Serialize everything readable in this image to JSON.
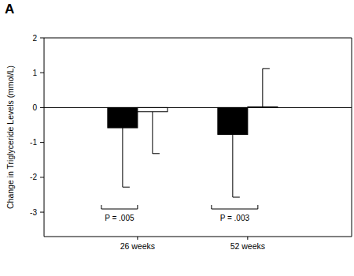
{
  "chart_data": {
    "type": "bar",
    "panel_label": "A",
    "y_label": "Change in Triglyceride Levels (mmol/L)",
    "categories": [
      "26 weeks",
      "52 weeks"
    ],
    "series": [
      {
        "color": "#000000",
        "values": [
          -0.58,
          -0.77
        ],
        "errors": [
          1.7,
          1.8
        ]
      },
      {
        "color": "#ffffff",
        "values": [
          -0.12,
          0.02
        ],
        "errors": [
          1.2,
          1.1
        ]
      }
    ],
    "annotations": [
      "P = .005",
      "P = .003"
    ],
    "ylim": [
      -3.7,
      2
    ],
    "yticks": [
      -3,
      -2,
      -1,
      0,
      1,
      2
    ],
    "grid": false
  }
}
